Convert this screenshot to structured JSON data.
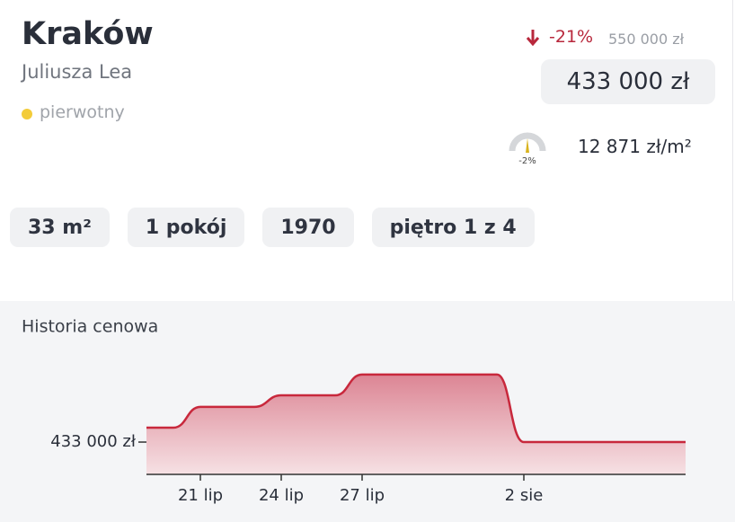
{
  "header": {
    "city": "Kraków",
    "street": "Juliusza Lea",
    "status": "pierwotny"
  },
  "price": {
    "change": "-21%",
    "old_price": "550 000 zł",
    "price": "433 000 zł",
    "gauge_label": "-2%",
    "price_per_m2": "12 871 zł/m²"
  },
  "tags": [
    "33 m²",
    "1 pokój",
    "1970",
    "piętro 1 z 4"
  ],
  "chart_data": {
    "type": "area",
    "title": "Historia cenowa",
    "categories": [
      null,
      null,
      "21 lip",
      null,
      null,
      "24 lip",
      null,
      null,
      "27 lip",
      null,
      null,
      null,
      null,
      null,
      "2 sie",
      null,
      null,
      null,
      null,
      null,
      null
    ],
    "values": [
      458000,
      458000,
      494000,
      494000,
      494000,
      514000,
      514000,
      514000,
      550000,
      550000,
      550000,
      550000,
      550000,
      550000,
      433000,
      433000,
      433000,
      433000,
      433000,
      433000,
      433000
    ],
    "color": "#c8283c",
    "ylim": [
      377000,
      595000
    ],
    "yticks": [
      {
        "value": 433000,
        "label": "433 000 zł"
      }
    ]
  }
}
